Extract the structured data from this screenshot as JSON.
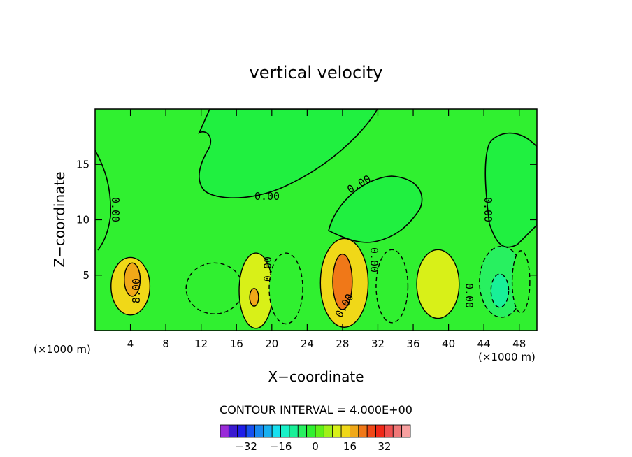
{
  "chart_data": {
    "type": "heatmap",
    "title": "vertical velocity",
    "xlabel": "X−coordinate",
    "ylabel": "Z−coordinate",
    "x_unit_left": "(×1000 m)",
    "x_unit_right": "(×1000 m)",
    "xlim": [
      0,
      50
    ],
    "ylim": [
      0,
      20
    ],
    "x_ticks": [
      4,
      8,
      12,
      16,
      20,
      24,
      28,
      32,
      36,
      40,
      44,
      48
    ],
    "y_ticks": [
      5,
      10,
      15
    ],
    "contour_interval_label": "CONTOUR INTERVAL = 4.000E+00",
    "contour_labels": [
      "0.00",
      "0.00",
      "0.00",
      "0.00",
      "0.00",
      "0.00",
      "0.00",
      "8.00",
      "0.00",
      "0.00"
    ],
    "colorbar": {
      "ticks": [
        "−32",
        "−16",
        "0",
        "16",
        "32"
      ],
      "colors": [
        "#9a2bd8",
        "#3a1ad0",
        "#1e1ee8",
        "#1650f0",
        "#1888f0",
        "#18b0f0",
        "#18e0f0",
        "#18f0c8",
        "#18f098",
        "#28f060",
        "#30f030",
        "#60f018",
        "#a0f018",
        "#d8f018",
        "#f0d818",
        "#f0a818",
        "#f07818",
        "#f04818",
        "#f02818",
        "#f05050",
        "#f07878",
        "#f8a0a0"
      ]
    },
    "regions": [
      {
        "cx": 4.0,
        "cz": 4.0,
        "rx": 2.2,
        "rz": 2.6,
        "value": 10
      },
      {
        "cx": 4.2,
        "cz": 4.6,
        "rx": 0.9,
        "rz": 1.5,
        "value": 16
      },
      {
        "cx": 13.5,
        "cz": 3.8,
        "rx": 3.2,
        "rz": 2.3,
        "value": -6
      },
      {
        "cx": 18.2,
        "cz": 3.6,
        "rx": 1.9,
        "rz": 3.4,
        "value": 8
      },
      {
        "cx": 18.0,
        "cz": 3.0,
        "rx": 0.5,
        "rz": 0.8,
        "value": 14
      },
      {
        "cx": 21.6,
        "cz": 3.8,
        "rx": 1.9,
        "rz": 3.2,
        "value": -6
      },
      {
        "cx": 28.2,
        "cz": 4.3,
        "rx": 2.7,
        "rz": 4.0,
        "value": 13
      },
      {
        "cx": 28.0,
        "cz": 4.4,
        "rx": 1.1,
        "rz": 2.5,
        "value": 18
      },
      {
        "cx": 33.6,
        "cz": 4.0,
        "rx": 1.8,
        "rz": 3.3,
        "value": -4
      },
      {
        "cx": 38.8,
        "cz": 4.2,
        "rx": 2.4,
        "rz": 3.1,
        "value": 7
      },
      {
        "cx": 46.0,
        "cz": 4.4,
        "rx": 2.5,
        "rz": 3.2,
        "value": -8
      },
      {
        "cx": 45.8,
        "cz": 3.6,
        "rx": 1.0,
        "rz": 1.5,
        "value": -14
      },
      {
        "cx": 48.2,
        "cz": 4.4,
        "rx": 1.0,
        "rz": 2.8,
        "value": -4
      }
    ]
  }
}
